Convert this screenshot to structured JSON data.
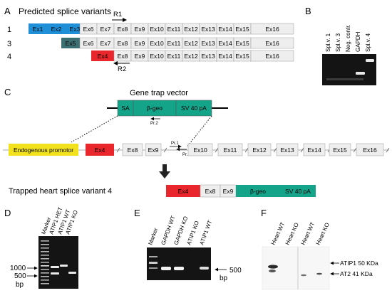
{
  "panels": {
    "a": "A",
    "b": "B",
    "c": "C",
    "d": "D",
    "e": "E",
    "f": "F"
  },
  "panel_a": {
    "title": "Predicted splice variants",
    "primer_r1": "R1",
    "primer_r2": "R2",
    "rows": [
      {
        "label": "1",
        "exons": [
          "Ex1",
          "Ex2",
          "Ex3",
          "Ex6",
          "Ex7",
          "Ex8",
          "Ex9",
          "Ex10",
          "Ex11",
          "Ex12",
          "Ex13",
          "Ex14",
          "Ex15",
          "Ex16"
        ]
      },
      {
        "label": "3",
        "exons": [
          "Ex5",
          "Ex6",
          "Ex7",
          "Ex8",
          "Ex9",
          "Ex10",
          "Ex11",
          "Ex12",
          "Ex13",
          "Ex14",
          "Ex15",
          "Ex16"
        ]
      },
      {
        "label": "4",
        "exons": [
          "Ex4",
          "Ex8",
          "Ex9",
          "Ex10",
          "Ex11",
          "Ex12",
          "Ex13",
          "Ex14",
          "Ex15",
          "Ex16"
        ]
      }
    ]
  },
  "panel_b": {
    "lanes": [
      "Spl.v. 1",
      "Spl.v. 3",
      "Neg. contr.",
      "GAPDH",
      "Spl.v. 4"
    ]
  },
  "panel_c": {
    "vector_title": "Gene trap vector",
    "vector_parts": [
      "SA",
      "β-geo",
      "SV 40 pA"
    ],
    "pr1": "Pr.1",
    "pr2": "Pr.2",
    "pr3": "Pr.3",
    "promotor": "Endogenous promotor",
    "locus_exons": [
      "Ex4",
      "Ex8",
      "Ex9",
      "Ex10",
      "Ex11",
      "Ex12",
      "Ex13",
      "Ex14",
      "Ex15",
      "Ex16"
    ],
    "trapped_title": "Trapped heart splice variant 4",
    "trapped_parts": [
      "Ex4",
      "Ex8",
      "Ex9",
      "β-geo",
      "SV 40 pA"
    ]
  },
  "panel_d": {
    "lanes": [
      "Marker",
      "ATIP1 HET",
      "ATIP1 WT",
      "ATIP1 KO"
    ],
    "sizes": [
      "1000",
      "500"
    ],
    "unit": "bp"
  },
  "panel_e": {
    "lanes": [
      "Marker",
      "GAPDH WT",
      "GAPDH KO",
      "ATIP1 KO",
      "ATIP1 WT"
    ],
    "size": "500",
    "unit": "bp"
  },
  "panel_f": {
    "lanes": [
      "Heart WT",
      "Heart KO",
      "Heart WT",
      "Heart KO"
    ],
    "band1": "ATIP1 50 KDa",
    "band2": "AT2 41 KDa"
  },
  "colors": {
    "ex123": "#1f8fd8",
    "ex5": "#3c6f72",
    "ex4": "#e8262b",
    "geo": "#14a48a",
    "promotor": "#f2e21d",
    "exon": "#eeeeee",
    "gel": "#111111"
  }
}
